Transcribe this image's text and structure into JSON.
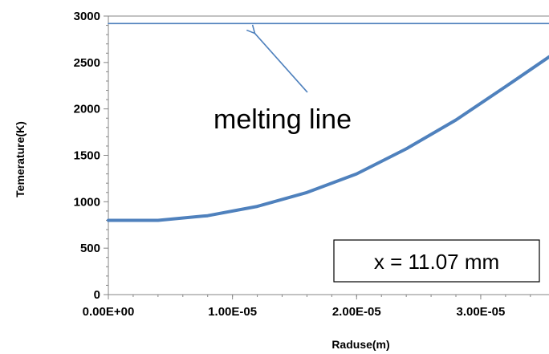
{
  "chart_data": {
    "type": "line",
    "title": "",
    "xlabel": "Raduse(m)",
    "ylabel": "Temerature(K)",
    "xlim": [
      0,
      3.55e-05
    ],
    "ylim": [
      0,
      3000
    ],
    "x_ticks": [
      0,
      1e-05,
      2e-05,
      3e-05
    ],
    "x_tick_labels": [
      "0.00E+00",
      "1.00E-05",
      "2.00E-05",
      "3.00E-05"
    ],
    "y_ticks": [
      0,
      500,
      1000,
      1500,
      2000,
      2500,
      3000
    ],
    "y_tick_labels": [
      "0",
      "500",
      "1000",
      "1500",
      "2000",
      "2500",
      "3000"
    ],
    "grid": false,
    "legend": "none",
    "series": [
      {
        "color": "#4f81bd",
        "x": [
          0,
          4e-06,
          8e-06,
          1.2e-05,
          1.6e-05,
          2e-05,
          2.4e-05,
          2.8e-05,
          3.2e-05,
          3.55e-05
        ],
        "y": [
          800,
          800,
          850,
          950,
          1100,
          1300,
          1570,
          1880,
          2240,
          2560
        ]
      },
      {
        "color": "#4f81bd",
        "x": [
          0,
          3.55e-05
        ],
        "y": [
          2920,
          2920
        ]
      }
    ],
    "annotations": [
      {
        "id": "melting",
        "text": "melting  line",
        "arrow_target": {
          "x": 1.18e-05,
          "y": 2900
        }
      },
      {
        "id": "box",
        "text": "x = 11.07 mm"
      }
    ]
  }
}
